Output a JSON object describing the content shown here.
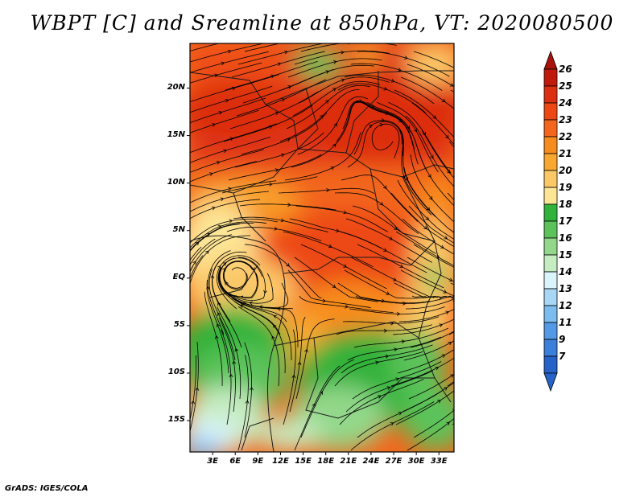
{
  "title": "WBPT [C] and Sreamline at 850hPa, VT: 2020080500",
  "footer": "GrADS: IGES/COLA",
  "map": {
    "lat_labels": [
      "20N",
      "15N",
      "10N",
      "5N",
      "EQ",
      "5S",
      "10S",
      "15S"
    ],
    "lat_values": [
      20,
      15,
      10,
      5,
      0,
      -5,
      -10,
      -15
    ],
    "lon_labels": [
      "3E",
      "6E",
      "9E",
      "12E",
      "15E",
      "18E",
      "21E",
      "24E",
      "27E",
      "30E",
      "33E"
    ],
    "lon_values": [
      3,
      6,
      9,
      12,
      15,
      18,
      21,
      24,
      27,
      30,
      33
    ],
    "lat_range": [
      -18.3,
      24.7
    ],
    "lon_range": [
      0,
      35
    ],
    "vortices": [
      {
        "name": "cyclonic-circulation-gulf-of-guinea",
        "lon": 6,
        "lat": 0.5
      },
      {
        "name": "circulation-central-sahel",
        "lon": 22,
        "lat": 18.5
      },
      {
        "name": "circulation-sudan",
        "lon": 26.5,
        "lat": 15.5
      }
    ]
  },
  "colorbar": {
    "levels": [
      "26",
      "25",
      "24",
      "23",
      "22",
      "21",
      "20",
      "19",
      "18",
      "17",
      "16",
      "15",
      "14",
      "13",
      "12",
      "11",
      "9",
      "7"
    ],
    "colors": [
      "#c01a0c",
      "#dc2e10",
      "#ed4814",
      "#f3661b",
      "#f78c1e",
      "#f8a830",
      "#fbc868",
      "#fde596",
      "#31b23a",
      "#5bc35a",
      "#93d88a",
      "#c6ecc1",
      "#daf4fb",
      "#a7d7f5",
      "#7cbcef",
      "#5499e5",
      "#3a7fd9",
      "#2563c8"
    ],
    "top_triangle_color": "#a8120a",
    "bottom_triangle_color": "#2563c8"
  }
}
